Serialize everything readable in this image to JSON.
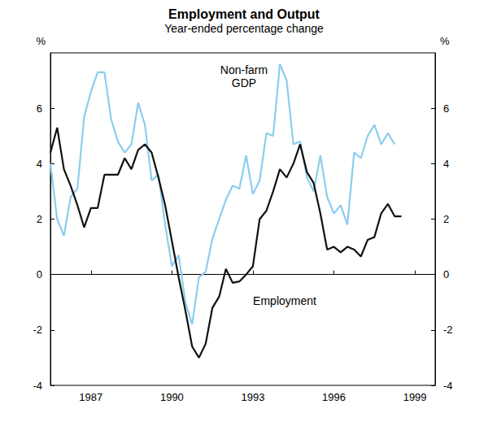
{
  "chart_data": {
    "type": "line",
    "title": "Employment and Output",
    "subtitle": "Year-ended percentage change",
    "ylabel": "%",
    "y2label": "%",
    "categories": [
      null,
      null,
      null,
      null,
      null,
      null,
      "1987",
      null,
      null,
      null,
      null,
      null,
      null,
      null,
      null,
      null,
      null,
      null,
      "1990",
      null,
      null,
      null,
      null,
      null,
      null,
      null,
      null,
      null,
      null,
      null,
      "1993",
      null,
      null,
      null,
      null,
      null,
      null,
      null,
      null,
      null,
      null,
      null,
      "1996",
      null,
      null,
      null,
      null,
      null,
      null,
      null,
      null,
      null,
      null,
      null,
      "1999",
      null,
      null,
      null
    ],
    "series": [
      {
        "name": "Non-farm GDP",
        "color": "#8ccdee",
        "values": [
          4.0,
          2.0,
          1.4,
          2.8,
          3.1,
          5.7,
          6.6,
          7.3,
          7.3,
          5.6,
          4.8,
          4.4,
          4.7,
          6.2,
          5.4,
          3.4,
          3.6,
          1.8,
          0.3,
          0.7,
          -1.0,
          -1.8,
          -0.1,
          0.1,
          1.3,
          2.0,
          2.7,
          3.2,
          3.1,
          4.3,
          2.9,
          3.4,
          5.1,
          5.0,
          7.6,
          7.0,
          4.7,
          4.8,
          3.5,
          3.0,
          4.3,
          2.8,
          2.2,
          2.5,
          1.8,
          4.4,
          4.2,
          5.0,
          5.4,
          4.7,
          5.1,
          4.7,
          null,
          null,
          null,
          null,
          null,
          null
        ]
      },
      {
        "name": "Employment",
        "color": "#111111",
        "values": [
          4.4,
          5.3,
          3.8,
          3.2,
          2.5,
          1.7,
          2.4,
          2.4,
          3.6,
          3.6,
          3.6,
          4.2,
          3.8,
          4.5,
          4.7,
          4.4,
          3.5,
          2.5,
          1.2,
          -0.1,
          -1.3,
          -2.6,
          -3.0,
          -2.5,
          -1.2,
          -0.8,
          0.2,
          -0.3,
          -0.25,
          0.0,
          0.3,
          2.0,
          2.3,
          3.0,
          3.8,
          3.5,
          4.0,
          4.7,
          3.7,
          3.3,
          2.2,
          0.9,
          1.0,
          0.8,
          1.0,
          0.9,
          0.65,
          1.25,
          1.35,
          2.2,
          2.55,
          2.1,
          2.1,
          null,
          null,
          null,
          null,
          null
        ]
      }
    ],
    "ylim": [
      -4,
      8
    ],
    "yticks": [
      -4,
      -2,
      0,
      2,
      4,
      6
    ],
    "y2lim": [
      -4,
      8
    ],
    "y2ticks": [
      -4,
      -2,
      0,
      2,
      4,
      6
    ],
    "grid": false
  }
}
